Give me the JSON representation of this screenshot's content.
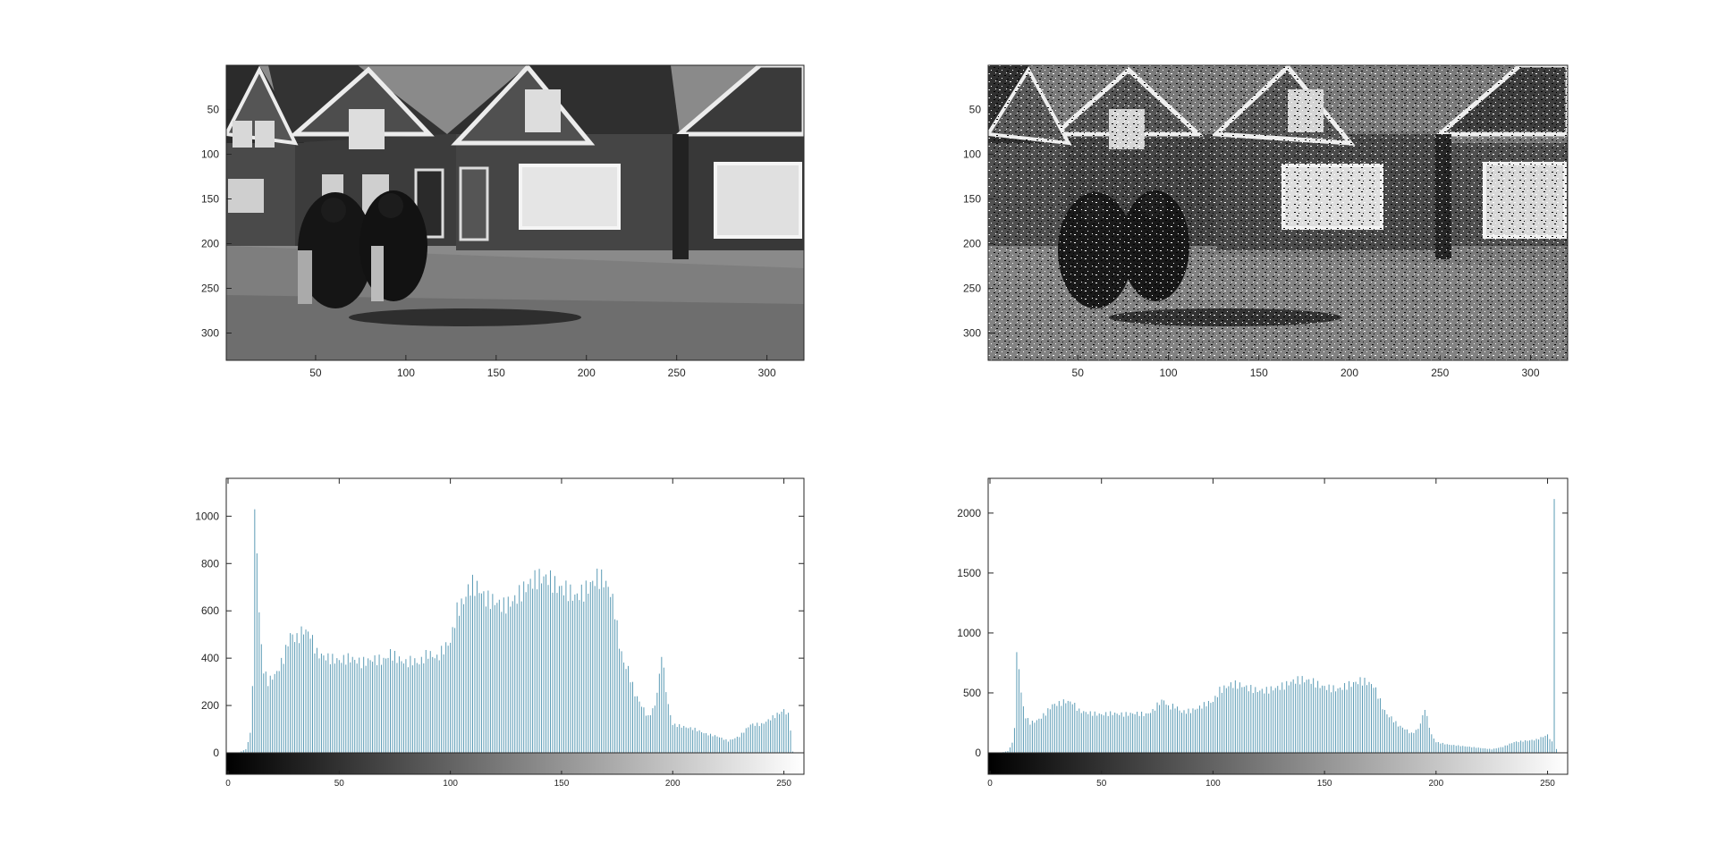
{
  "figure": {
    "background": "#ffffff",
    "axes_color": "#262626",
    "bar_color": "#5b9bb5"
  },
  "chart_data": [
    {
      "type": "image",
      "description_key": "original-grayscale-photo",
      "xlim": [
        0.5,
        320.5
      ],
      "ylim": [
        0.5,
        330.5
      ],
      "y_reversed": true,
      "xticks": [
        50,
        100,
        150,
        200,
        250,
        300
      ],
      "xtick_labels": [
        "50",
        "100",
        "150",
        "200",
        "250",
        "300"
      ],
      "yticks": [
        50,
        100,
        150,
        200,
        250,
        300
      ],
      "ytick_labels": [
        "50",
        "100",
        "150",
        "200",
        "250",
        "300"
      ]
    },
    {
      "type": "image",
      "description_key": "noisy-grayscale-photo",
      "xlim": [
        0.5,
        320.5
      ],
      "ylim": [
        0.5,
        330.5
      ],
      "y_reversed": true,
      "xticks": [
        50,
        100,
        150,
        200,
        250,
        300
      ],
      "xtick_labels": [
        "50",
        "100",
        "150",
        "200",
        "250",
        "300"
      ],
      "yticks": [
        50,
        100,
        150,
        200,
        250,
        300
      ],
      "ytick_labels": [
        "50",
        "100",
        "150",
        "200",
        "250",
        "300"
      ]
    },
    {
      "type": "bar",
      "xlim": [
        0,
        255
      ],
      "ylim": [
        0,
        1160
      ],
      "yticks": [
        0,
        200,
        400,
        600,
        800,
        1000
      ],
      "ytick_labels": [
        "0",
        "200",
        "400",
        "600",
        "800",
        "1000"
      ],
      "colorbar_ticks": [
        0,
        50,
        100,
        150,
        200,
        250
      ],
      "colorbar_tick_labels": [
        "0",
        "50",
        "100",
        "150",
        "200",
        "250"
      ],
      "anchors": [
        [
          0,
          0
        ],
        [
          5,
          2
        ],
        [
          8,
          15
        ],
        [
          10,
          80
        ],
        [
          11,
          300
        ],
        [
          12,
          980
        ],
        [
          13,
          870
        ],
        [
          14,
          590
        ],
        [
          15,
          450
        ],
        [
          16,
          350
        ],
        [
          18,
          300
        ],
        [
          20,
          320
        ],
        [
          22,
          340
        ],
        [
          25,
          400
        ],
        [
          28,
          500
        ],
        [
          31,
          480
        ],
        [
          34,
          520
        ],
        [
          37,
          500
        ],
        [
          40,
          420
        ],
        [
          45,
          400
        ],
        [
          50,
          390
        ],
        [
          55,
          400
        ],
        [
          60,
          380
        ],
        [
          65,
          395
        ],
        [
          70,
          390
        ],
        [
          73,
          420
        ],
        [
          76,
          400
        ],
        [
          80,
          380
        ],
        [
          83,
          390
        ],
        [
          86,
          380
        ],
        [
          90,
          420
        ],
        [
          94,
          400
        ],
        [
          97,
          440
        ],
        [
          100,
          470
        ],
        [
          103,
          600
        ],
        [
          106,
          640
        ],
        [
          108,
          690
        ],
        [
          110,
          710
        ],
        [
          113,
          690
        ],
        [
          116,
          650
        ],
        [
          120,
          640
        ],
        [
          124,
          620
        ],
        [
          128,
          640
        ],
        [
          132,
          680
        ],
        [
          136,
          720
        ],
        [
          140,
          740
        ],
        [
          144,
          740
        ],
        [
          148,
          700
        ],
        [
          152,
          690
        ],
        [
          156,
          660
        ],
        [
          160,
          680
        ],
        [
          163,
          710
        ],
        [
          166,
          740
        ],
        [
          169,
          730
        ],
        [
          172,
          680
        ],
        [
          174,
          600
        ],
        [
          176,
          460
        ],
        [
          178,
          380
        ],
        [
          180,
          350
        ],
        [
          183,
          250
        ],
        [
          186,
          200
        ],
        [
          189,
          150
        ],
        [
          192,
          200
        ],
        [
          194,
          320
        ],
        [
          195,
          430
        ],
        [
          196,
          340
        ],
        [
          198,
          200
        ],
        [
          200,
          120
        ],
        [
          205,
          110
        ],
        [
          210,
          100
        ],
        [
          215,
          80
        ],
        [
          220,
          70
        ],
        [
          225,
          50
        ],
        [
          230,
          70
        ],
        [
          235,
          120
        ],
        [
          240,
          120
        ],
        [
          245,
          150
        ],
        [
          250,
          180
        ],
        [
          252,
          160
        ],
        [
          253,
          100
        ],
        [
          254,
          5
        ],
        [
          255,
          0
        ]
      ],
      "x_centers": "0..255"
    },
    {
      "type": "bar",
      "xlim": [
        0,
        255
      ],
      "ylim": [
        0,
        2290
      ],
      "yticks": [
        0,
        500,
        1000,
        1500,
        2000
      ],
      "ytick_labels": [
        "0",
        "500",
        "1000",
        "1500",
        "2000"
      ],
      "colorbar_ticks": [
        0,
        50,
        100,
        150,
        200,
        250
      ],
      "colorbar_tick_labels": [
        "0",
        "50",
        "100",
        "150",
        "200",
        "250"
      ],
      "anchors": [
        [
          0,
          0
        ],
        [
          5,
          2
        ],
        [
          8,
          15
        ],
        [
          10,
          80
        ],
        [
          11,
          220
        ],
        [
          12,
          800
        ],
        [
          13,
          720
        ],
        [
          14,
          500
        ],
        [
          15,
          380
        ],
        [
          16,
          300
        ],
        [
          18,
          250
        ],
        [
          20,
          260
        ],
        [
          22,
          280
        ],
        [
          25,
          330
        ],
        [
          28,
          400
        ],
        [
          31,
          410
        ],
        [
          34,
          430
        ],
        [
          37,
          420
        ],
        [
          40,
          350
        ],
        [
          45,
          330
        ],
        [
          50,
          320
        ],
        [
          55,
          330
        ],
        [
          60,
          320
        ],
        [
          65,
          330
        ],
        [
          70,
          320
        ],
        [
          73,
          350
        ],
        [
          76,
          420
        ],
        [
          78,
          440
        ],
        [
          80,
          380
        ],
        [
          83,
          390
        ],
        [
          86,
          340
        ],
        [
          90,
          350
        ],
        [
          94,
          380
        ],
        [
          97,
          410
        ],
        [
          100,
          430
        ],
        [
          103,
          520
        ],
        [
          106,
          550
        ],
        [
          108,
          570
        ],
        [
          110,
          570
        ],
        [
          113,
          560
        ],
        [
          116,
          540
        ],
        [
          120,
          520
        ],
        [
          124,
          520
        ],
        [
          128,
          540
        ],
        [
          132,
          560
        ],
        [
          136,
          600
        ],
        [
          140,
          610
        ],
        [
          144,
          600
        ],
        [
          148,
          560
        ],
        [
          152,
          540
        ],
        [
          156,
          530
        ],
        [
          160,
          560
        ],
        [
          163,
          580
        ],
        [
          166,
          600
        ],
        [
          169,
          590
        ],
        [
          172,
          560
        ],
        [
          174,
          480
        ],
        [
          176,
          380
        ],
        [
          178,
          320
        ],
        [
          180,
          290
        ],
        [
          183,
          230
        ],
        [
          186,
          200
        ],
        [
          189,
          160
        ],
        [
          192,
          200
        ],
        [
          194,
          300
        ],
        [
          195,
          380
        ],
        [
          196,
          290
        ],
        [
          198,
          150
        ],
        [
          200,
          90
        ],
        [
          205,
          70
        ],
        [
          210,
          60
        ],
        [
          215,
          50
        ],
        [
          220,
          40
        ],
        [
          225,
          30
        ],
        [
          230,
          50
        ],
        [
          235,
          90
        ],
        [
          240,
          100
        ],
        [
          245,
          110
        ],
        [
          250,
          150
        ],
        [
          251,
          120
        ],
        [
          252,
          90
        ],
        [
          253,
          2250
        ],
        [
          254,
          30
        ],
        [
          255,
          0
        ]
      ],
      "x_centers": "0..255"
    }
  ]
}
